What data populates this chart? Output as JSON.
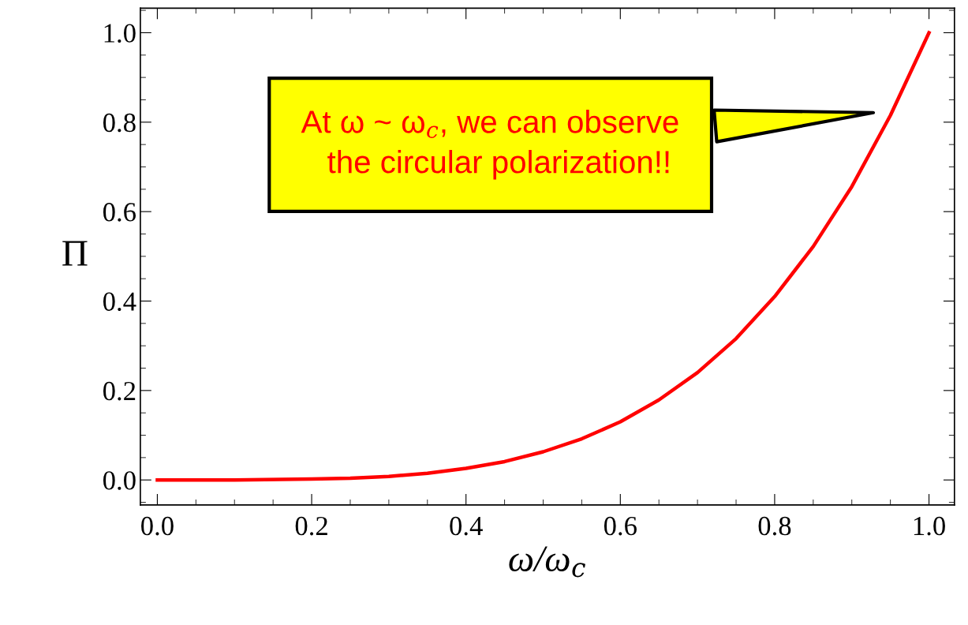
{
  "chart_data": {
    "type": "line",
    "xlabel": "ω/ω$_{c}$",
    "ylabel": "Π",
    "x": [
      0,
      0.1,
      0.2,
      0.25,
      0.3,
      0.35,
      0.4,
      0.45,
      0.5,
      0.55,
      0.6,
      0.65,
      0.7,
      0.75,
      0.8,
      0.85,
      0.9,
      0.95,
      1.0
    ],
    "series": [
      {
        "color": "#ff0000",
        "values": [
          0,
          0,
          0.002,
          0.004,
          0.008,
          0.015,
          0.026,
          0.041,
          0.063,
          0.092,
          0.13,
          0.179,
          0.24,
          0.316,
          0.41,
          0.522,
          0.656,
          0.815,
          1.0
        ]
      }
    ],
    "xlim": [
      -0.022,
      1.033
    ],
    "ylim": [
      -0.056,
      1.055
    ],
    "xticks": [
      {
        "value": 0,
        "label": "0.0"
      },
      0.2,
      0.4,
      0.6,
      0.8,
      {
        "value": 1.0,
        "label": "1.0"
      }
    ],
    "yticks": [
      {
        "value": 0,
        "label": "0.0"
      },
      0.2,
      0.4,
      0.6,
      0.8,
      {
        "value": 1.0,
        "label": "1.0"
      }
    ],
    "annotations": [
      "At ω ~ ω$_{c}$, we can observe\n  the circular polarization!!"
    ],
    "grid": false,
    "marker": "none",
    "line_style": "solid"
  }
}
